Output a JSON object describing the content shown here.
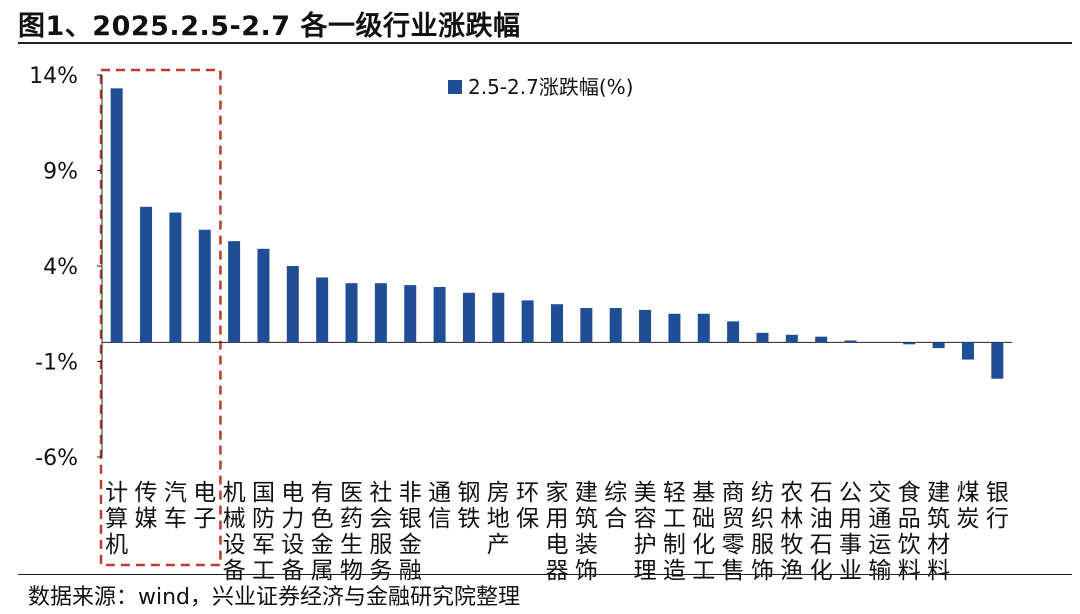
{
  "figure": {
    "title": "图1、2025.2.5-2.7 各一级行业涨跌幅",
    "source": "数据来源：wind，兴业证券经济与金融研究院整理"
  },
  "chart_data": {
    "type": "bar",
    "title": "图1、2025.2.5-2.7 各一级行业涨跌幅",
    "xlabel": "",
    "ylabel": "",
    "ylim": [
      -6,
      14
    ],
    "yticks": [
      14,
      9,
      4,
      -1,
      -6
    ],
    "ytick_labels": [
      "14%",
      "9%",
      "4%",
      "-1%",
      "-6%"
    ],
    "legend": "top-center",
    "grid": false,
    "bar_color": "#1F4E96",
    "highlight_color": "#C0392B",
    "highlight_range": [
      0,
      3
    ],
    "categories": [
      "计算机",
      "传媒",
      "汽车",
      "电子",
      "机械设备",
      "国防军工",
      "电力设备",
      "有色金属",
      "医药生物",
      "社会服务",
      "非银金融",
      "通信",
      "钢铁",
      "房地产",
      "环保",
      "家用电器",
      "建筑装饰",
      "综合",
      "美容护理",
      "轻工制造",
      "基础化工",
      "商贸零售",
      "纺织服饰",
      "农林牧渔",
      "石油石化",
      "公用事业",
      "交通运输",
      "食品饮料",
      "建筑材料",
      "煤炭",
      "银行"
    ],
    "series": [
      {
        "name": "2.5-2.7涨跌幅(%)",
        "values": [
          13.3,
          7.1,
          6.8,
          5.9,
          5.3,
          4.9,
          4.0,
          3.4,
          3.1,
          3.1,
          3.0,
          2.9,
          2.6,
          2.6,
          2.2,
          2.0,
          1.8,
          1.8,
          1.7,
          1.5,
          1.5,
          1.1,
          0.5,
          0.4,
          0.3,
          0.1,
          0.0,
          -0.1,
          -0.3,
          -0.9,
          -1.9
        ]
      }
    ]
  }
}
